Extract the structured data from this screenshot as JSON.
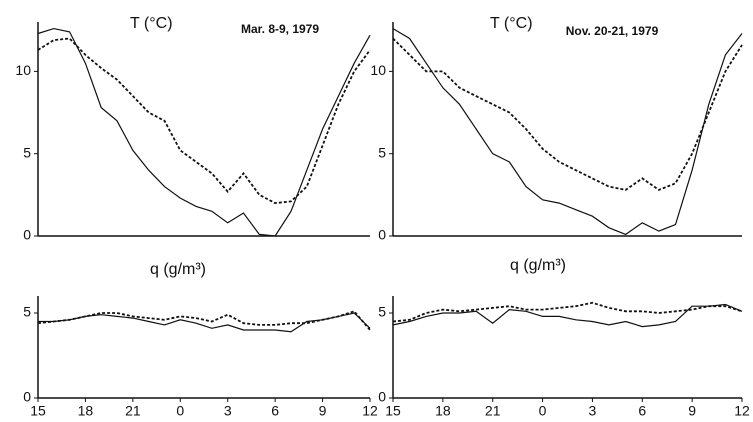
{
  "chart_data": [
    {
      "type": "line",
      "title": "T (°C)",
      "annotation": "Mar. 8-9, 1979",
      "x": [
        15,
        16,
        17,
        18,
        19,
        20,
        21,
        22,
        23,
        24,
        25,
        26,
        27,
        28,
        29,
        30,
        31,
        32,
        33,
        34,
        35,
        36
      ],
      "xlim": [
        15,
        36
      ],
      "ylim": [
        0,
        13
      ],
      "yticks": [
        0,
        5,
        10
      ],
      "series": [
        {
          "color": "#111111",
          "style": "solid",
          "values": [
            12.3,
            12.6,
            12.4,
            10.5,
            7.8,
            7,
            5.2,
            4,
            3,
            2.3,
            1.8,
            1.5,
            0.8,
            1.4,
            0.1,
            0,
            1.5,
            4,
            6.5,
            8.5,
            10.5,
            12.2
          ]
        },
        {
          "color": "#111111",
          "style": "dashed",
          "values": [
            11.3,
            11.9,
            12,
            11,
            10.2,
            9.5,
            8.5,
            7.5,
            7,
            5.2,
            4.5,
            3.8,
            2.7,
            3.8,
            2.5,
            2,
            2.1,
            3,
            5.5,
            8,
            10,
            11.3
          ]
        }
      ]
    },
    {
      "type": "line",
      "title": "T (°C)",
      "annotation": "Nov. 20-21, 1979",
      "x": [
        15,
        16,
        17,
        18,
        19,
        20,
        21,
        22,
        23,
        24,
        25,
        26,
        27,
        28,
        29,
        30,
        31,
        32,
        33,
        34,
        35,
        36
      ],
      "xlim": [
        15,
        36
      ],
      "ylim": [
        0,
        13
      ],
      "yticks": [
        0,
        5,
        10
      ],
      "series": [
        {
          "color": "#111111",
          "style": "solid",
          "values": [
            12.6,
            12,
            10.5,
            9,
            8,
            6.5,
            5,
            4.5,
            3,
            2.2,
            2,
            1.6,
            1.2,
            0.5,
            0.1,
            0.8,
            0.3,
            0.7,
            4,
            8,
            11,
            12.3
          ]
        },
        {
          "color": "#111111",
          "style": "dashed",
          "values": [
            12,
            11,
            10,
            10,
            9,
            8.5,
            8,
            7.5,
            6.5,
            5.3,
            4.5,
            4,
            3.5,
            3,
            2.8,
            3.5,
            2.8,
            3.2,
            5,
            7.5,
            10,
            11.6
          ]
        }
      ]
    },
    {
      "type": "line",
      "title": "q (g/m³)",
      "x": [
        15,
        16,
        17,
        18,
        19,
        20,
        21,
        22,
        23,
        24,
        25,
        26,
        27,
        28,
        29,
        30,
        31,
        32,
        33,
        34,
        35,
        36
      ],
      "xlim": [
        15,
        36
      ],
      "ylim": [
        0,
        6
      ],
      "yticks": [
        0,
        5
      ],
      "xticks": [
        15,
        18,
        21,
        {
          "value": 24,
          "label": "0"
        },
        {
          "value": 27,
          "label": "3"
        },
        {
          "value": 30,
          "label": "6"
        },
        {
          "value": 33,
          "label": "9"
        },
        {
          "value": 36,
          "label": "12"
        }
      ],
      "series": [
        {
          "color": "#111111",
          "style": "solid",
          "values": [
            4.5,
            4.5,
            4.6,
            4.8,
            4.9,
            4.8,
            4.7,
            4.5,
            4.3,
            4.6,
            4.4,
            4.1,
            4.3,
            4,
            4,
            4,
            3.9,
            4.5,
            4.6,
            4.8,
            5,
            4.1
          ]
        },
        {
          "color": "#111111",
          "style": "dashed",
          "values": [
            4.4,
            4.5,
            4.6,
            4.8,
            5,
            5,
            4.8,
            4.7,
            4.6,
            4.8,
            4.7,
            4.5,
            4.9,
            4.4,
            4.3,
            4.3,
            4.4,
            4.4,
            4.6,
            4.8,
            5.1,
            4
          ]
        }
      ]
    },
    {
      "type": "line",
      "title": "q (g/m³)",
      "x": [
        15,
        16,
        17,
        18,
        19,
        20,
        21,
        22,
        23,
        24,
        25,
        26,
        27,
        28,
        29,
        30,
        31,
        32,
        33,
        34,
        35,
        36
      ],
      "xlim": [
        15,
        36
      ],
      "ylim": [
        0,
        6
      ],
      "yticks": [
        0,
        5
      ],
      "xticks": [
        15,
        18,
        21,
        {
          "value": 24,
          "label": "0"
        },
        {
          "value": 27,
          "label": "3"
        },
        {
          "value": 30,
          "label": "6"
        },
        {
          "value": 33,
          "label": "9"
        },
        {
          "value": 36,
          "label": "12"
        }
      ],
      "series": [
        {
          "color": "#111111",
          "style": "solid",
          "values": [
            4.3,
            4.5,
            4.8,
            5,
            5,
            5.1,
            4.4,
            5.2,
            5.1,
            4.8,
            4.8,
            4.6,
            4.5,
            4.3,
            4.5,
            4.2,
            4.3,
            4.5,
            5.4,
            5.4,
            5.5,
            5.1
          ]
        },
        {
          "color": "#111111",
          "style": "dashed",
          "values": [
            4.5,
            4.6,
            5,
            5.2,
            5.1,
            5.2,
            5.3,
            5.4,
            5.2,
            5.2,
            5.3,
            5.4,
            5.6,
            5.3,
            5.1,
            5.1,
            5,
            5.1,
            5.2,
            5.4,
            5.4,
            5.1
          ]
        }
      ]
    }
  ]
}
